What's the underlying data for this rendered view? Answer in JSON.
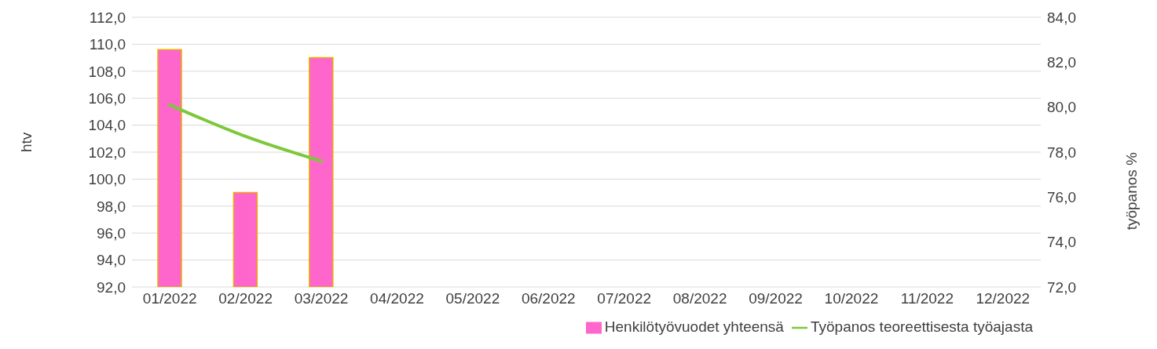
{
  "chart_data": {
    "type": "bar",
    "ylabel": "htv",
    "y2label": "työpanos %",
    "categories": [
      "01/2022",
      "02/2022",
      "03/2022",
      "04/2022",
      "05/2022",
      "06/2022",
      "07/2022",
      "08/2022",
      "09/2022",
      "10/2022",
      "11/2022",
      "12/2022"
    ],
    "series": [
      {
        "name": "Henkilötyövuodet yhteensä",
        "color": "#ff66cc",
        "values": [
          109.6,
          99.0,
          109.0,
          null,
          null,
          null,
          null,
          null,
          null,
          null,
          null,
          null
        ]
      },
      {
        "name": "Työpanos teoreettisesta työajasta",
        "type": "line",
        "axis": "y2",
        "color": "#7dc83a",
        "values": [
          80.1,
          78.7,
          77.6,
          null,
          null,
          null,
          null,
          null,
          null,
          null,
          null,
          null
        ]
      }
    ],
    "ylim": [
      92,
      112
    ],
    "yticks": [
      {
        "value": 92,
        "label": "92,0"
      },
      {
        "value": 94,
        "label": "94,0"
      },
      {
        "value": 96,
        "label": "96,0"
      },
      {
        "value": 98,
        "label": "98,0"
      },
      {
        "value": 100,
        "label": "100,0"
      },
      {
        "value": 102,
        "label": "102,0"
      },
      {
        "value": 104,
        "label": "104,0"
      },
      {
        "value": 106,
        "label": "106,0"
      },
      {
        "value": 108,
        "label": "108,0"
      },
      {
        "value": 110,
        "label": "110,0"
      },
      {
        "value": 112,
        "label": "112,0"
      }
    ],
    "y2lim": [
      72,
      84
    ],
    "y2ticks": [
      {
        "value": 72,
        "label": "72,0"
      },
      {
        "value": 74,
        "label": "74,0"
      },
      {
        "value": 76,
        "label": "76,0"
      },
      {
        "value": 78,
        "label": "78,0"
      },
      {
        "value": 80,
        "label": "80,0"
      },
      {
        "value": 82,
        "label": "82,0"
      },
      {
        "value": 84,
        "label": "84,0"
      }
    ],
    "grid": "y",
    "legend": "bottom right",
    "marker": "none"
  }
}
